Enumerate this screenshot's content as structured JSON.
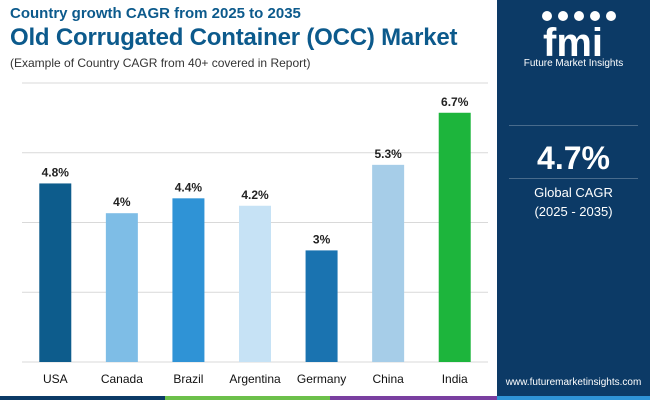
{
  "header": {
    "subtitle": "Country growth CAGR from 2025 to 2035",
    "title": "Old Corrugated Container (OCC) Market",
    "note": "(Example of Country CAGR from 40+ covered in Report)"
  },
  "brand": {
    "logo_text": "fmi",
    "name": "Future Market Insights",
    "website": "www.futuremarketinsights.com",
    "panel_color": "#0c3a66"
  },
  "kpi": {
    "value": "4.7%",
    "label": "Global CAGR",
    "range": "(2025 - 2035)"
  },
  "chart_data": {
    "type": "bar",
    "categories": [
      "USA",
      "Canada",
      "Brazil",
      "Argentina",
      "Germany",
      "China",
      "India"
    ],
    "values": [
      4.8,
      4.0,
      4.4,
      4.2,
      3.0,
      5.3,
      6.7
    ],
    "labels": [
      "4.8%",
      "4%",
      "4.4%",
      "4.2%",
      "3%",
      "5.3%",
      "6.7%"
    ],
    "colors": [
      "#0d5c8c",
      "#7ebde6",
      "#2f93d6",
      "#c6e2f5",
      "#1a73b0",
      "#a6cde8",
      "#1db53c"
    ],
    "ylim": [
      0,
      7.5
    ],
    "grid": true,
    "title": "",
    "xlabel": "",
    "ylabel": ""
  },
  "strip_colors": [
    "#0c3a66",
    "#6cc04a",
    "#7a3fa0",
    "#2f93d6"
  ]
}
